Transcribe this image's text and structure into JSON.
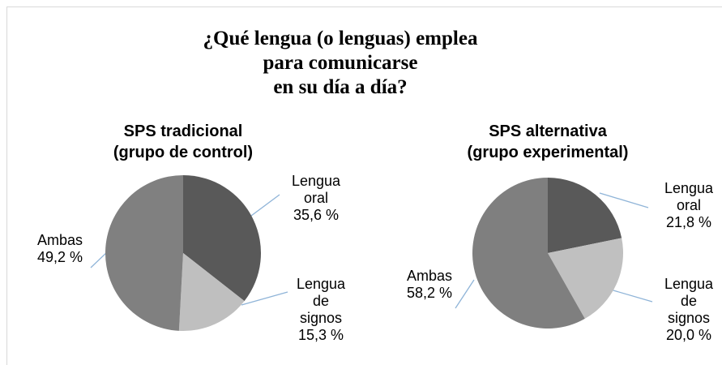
{
  "title": [
    "¿Qué lengua (o lenguas) emplea",
    "para comunicarse",
    "en su día a día?"
  ],
  "chart_data": [
    {
      "type": "pie",
      "title": [
        "SPS tradicional",
        "(grupo de control)"
      ],
      "categories": [
        "Lengua oral",
        "Lengua de signos",
        "Ambas"
      ],
      "values": [
        35.6,
        15.3,
        49.2
      ],
      "value_labels": [
        "35,6 %",
        "15,3 %",
        "49,2 %"
      ],
      "colors": [
        "#595959",
        "#bfbfbf",
        "#808080"
      ]
    },
    {
      "type": "pie",
      "title": [
        "SPS alternativa",
        "(grupo experimental)"
      ],
      "categories": [
        "Lengua oral",
        "Lengua de signos",
        "Ambas"
      ],
      "values": [
        21.8,
        20.0,
        58.2
      ],
      "value_labels": [
        "21,8 %",
        "20,0 %",
        "58,2 %"
      ],
      "colors": [
        "#595959",
        "#c0c0c0",
        "#7f7f7f"
      ]
    }
  ]
}
